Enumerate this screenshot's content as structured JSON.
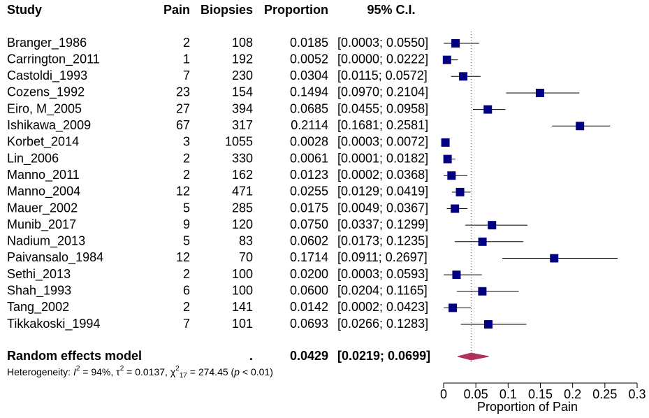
{
  "chart_data": {
    "type": "forest",
    "columns": {
      "study": "Study",
      "pain": "Pain",
      "biopsies": "Biopsies",
      "proportion": "Proportion",
      "ci": "95% C.I."
    },
    "studies": [
      "Branger_1986",
      "Carrington_2011",
      "Castoldi_1993",
      "Cozens_1992",
      "Eiro, M_2005",
      "Ishikawa_2009",
      "Korbet_2014",
      "Lin_2006",
      "Manno_2011",
      "Manno_2004",
      "Mauer_2002",
      "Munib_2017",
      "Nadium_2013",
      "Paivansalo_1984",
      "Sethi_2013",
      "Shah_1993",
      "Tang_2002",
      "Tikkakoski_1994"
    ],
    "pain": [
      2,
      1,
      7,
      23,
      27,
      67,
      3,
      2,
      2,
      12,
      5,
      9,
      5,
      12,
      2,
      6,
      2,
      7
    ],
    "biopsies": [
      108,
      192,
      230,
      154,
      394,
      317,
      1055,
      330,
      162,
      471,
      285,
      120,
      83,
      70,
      100,
      100,
      141,
      101
    ],
    "values": [
      0.0185,
      0.0052,
      0.0304,
      0.1494,
      0.0685,
      0.2114,
      0.0028,
      0.0061,
      0.0123,
      0.0255,
      0.0175,
      0.075,
      0.0602,
      0.1714,
      0.02,
      0.06,
      0.0142,
      0.0693
    ],
    "value_labels": [
      "0.0185",
      "0.0052",
      "0.0304",
      "0.1494",
      "0.0685",
      "0.2114",
      "0.0028",
      "0.0061",
      "0.0123",
      "0.0255",
      "0.0175",
      "0.0750",
      "0.0602",
      "0.1714",
      "0.0200",
      "0.0600",
      "0.0142",
      "0.0693"
    ],
    "ci_lower": [
      0.0003,
      0.0,
      0.0115,
      0.097,
      0.0455,
      0.1681,
      0.0003,
      0.0001,
      0.0002,
      0.0129,
      0.0049,
      0.0337,
      0.0173,
      0.0911,
      0.0003,
      0.0204,
      0.0002,
      0.0266
    ],
    "ci_upper": [
      0.055,
      0.0222,
      0.0572,
      0.2104,
      0.0958,
      0.2581,
      0.0072,
      0.0182,
      0.0368,
      0.0419,
      0.0367,
      0.1299,
      0.1235,
      0.2697,
      0.0593,
      0.1165,
      0.0423,
      0.1283
    ],
    "ci_labels": [
      "[0.0003; 0.0550]",
      "[0.0000; 0.0222]",
      "[0.0115; 0.0572]",
      "[0.0970; 0.2104]",
      "[0.0455; 0.0958]",
      "[0.1681; 0.2581]",
      "[0.0003; 0.0072]",
      "[0.0001; 0.0182]",
      "[0.0002; 0.0368]",
      "[0.0129; 0.0419]",
      "[0.0049; 0.0367]",
      "[0.0337; 0.1299]",
      "[0.0173; 0.1235]",
      "[0.0911; 0.2697]",
      "[0.0003; 0.0593]",
      "[0.0204; 0.1165]",
      "[0.0002; 0.0423]",
      "[0.0266; 0.1283]"
    ],
    "pooled": {
      "label": "Random effects model",
      "pain": ".",
      "value": 0.0429,
      "ci_lower": 0.0219,
      "ci_upper": 0.0699,
      "ci_label": "[0.0219; 0.0699]"
    },
    "heterogeneity": [
      {
        "text": "Heterogeneity: "
      },
      {
        "text": "I",
        "italic": true
      },
      {
        "text": "2",
        "sup": true
      },
      {
        "text": " = 94%, τ"
      },
      {
        "text": "2",
        "sup": true
      },
      {
        "text": " = 0.0137, χ"
      },
      {
        "text": "2",
        "sup": true
      },
      {
        "text": "17",
        "sub": true
      },
      {
        "text": " = 274.45 ("
      },
      {
        "text": "p",
        "italic": true
      },
      {
        "text": " < 0.01)"
      }
    ],
    "xlim": [
      0,
      0.3
    ],
    "xticks": [
      0,
      0.05,
      0.1,
      0.15,
      0.2,
      0.25,
      0.3
    ],
    "xlabel": "Proportion of Pain",
    "color": "#000080",
    "pooled_color": "#b03060",
    "ref_line": true
  }
}
